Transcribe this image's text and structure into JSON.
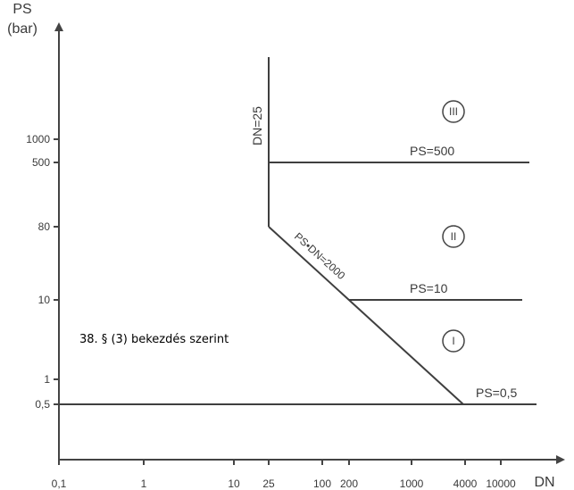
{
  "diagram": {
    "y_axis": {
      "title_line1": "PS",
      "title_line2": "(bar)",
      "ticks": [
        "1000",
        "500",
        "80",
        "10",
        "1",
        "0,5"
      ]
    },
    "x_axis": {
      "title": "DN",
      "ticks": [
        "0,1",
        "1",
        "10",
        "25",
        "100",
        "200",
        "1000",
        "4000",
        "10000"
      ]
    },
    "lines": {
      "dn25": "DN=25",
      "ps500": "PS=500",
      "psdn": "PS•DN=2000",
      "ps10": "PS=10",
      "ps05": "PS=0,5"
    },
    "regions": [
      "III",
      "II",
      "I"
    ],
    "note": "38. § (3) bekezdés szerint"
  }
}
